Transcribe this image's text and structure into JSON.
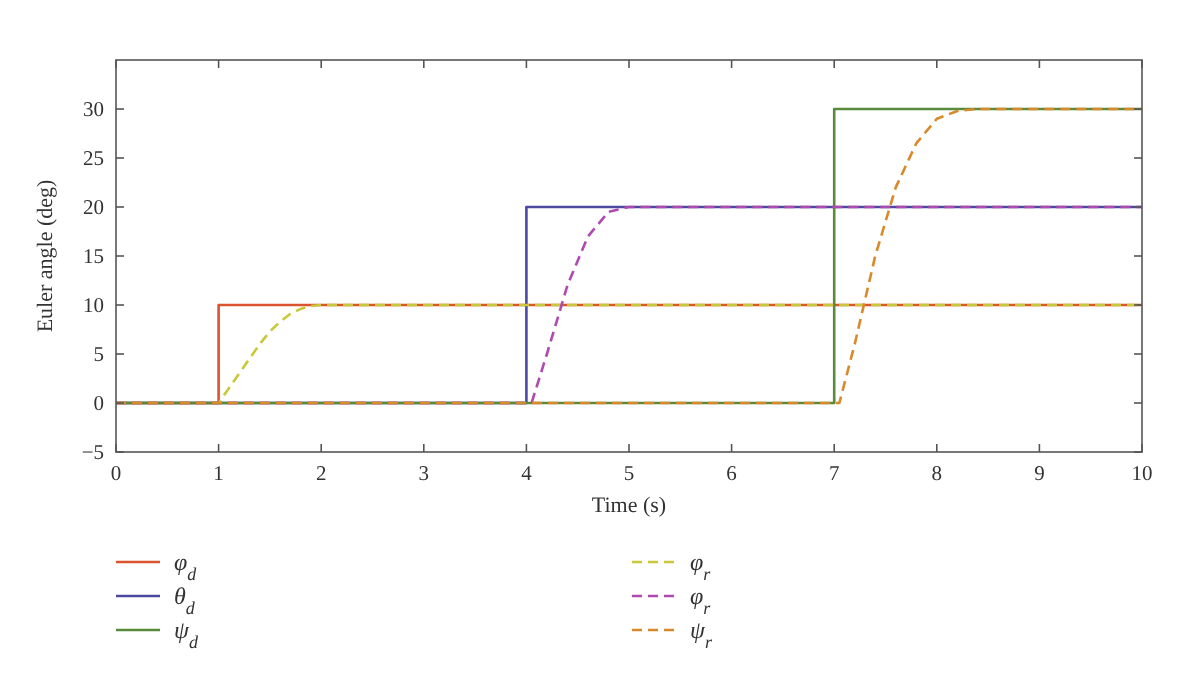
{
  "chart_data": {
    "type": "line",
    "xlabel": "Time (s)",
    "ylabel": "Euler angle (deg)",
    "xlim": [
      0,
      10
    ],
    "ylim": [
      -5,
      35
    ],
    "xticks": [
      0,
      1,
      2,
      3,
      4,
      5,
      6,
      7,
      8,
      9,
      10
    ],
    "yticks": [
      -5,
      0,
      5,
      10,
      15,
      20,
      25,
      30
    ],
    "grid": false,
    "legend": "bottom",
    "marker": "none",
    "series": [
      {
        "name": "φ$_{d}$",
        "color": "#d9542f",
        "line_style": "solid",
        "x": [
          0,
          1,
          1,
          10
        ],
        "values": [
          0,
          0,
          10,
          10
        ]
      },
      {
        "name": "θ$_{d}$",
        "color": "#4b4aa0",
        "line_style": "solid",
        "x": [
          0,
          4,
          4,
          10
        ],
        "values": [
          0,
          0,
          20,
          20
        ]
      },
      {
        "name": "ψ$_{d}$",
        "color": "#5a8a3c",
        "line_style": "solid",
        "x": [
          0,
          7,
          7,
          10
        ],
        "values": [
          0,
          0,
          30,
          30
        ]
      },
      {
        "name": "φ$_{r}$",
        "color": "#c8c83a",
        "line_style": "dashed",
        "x": [
          0,
          1,
          1.1,
          1.2,
          1.3,
          1.4,
          1.5,
          1.6,
          1.7,
          1.8,
          1.9,
          2,
          10
        ],
        "values": [
          0,
          0,
          1.5,
          3,
          4.5,
          6,
          7.3,
          8.3,
          9.1,
          9.6,
          9.9,
          10,
          10
        ]
      },
      {
        "name": "φ$_{r}$",
        "color": "#b04ab0",
        "line_style": "dashed",
        "x": [
          0,
          4.05,
          4.2,
          4.4,
          4.6,
          4.8,
          5,
          10
        ],
        "values": [
          0,
          0,
          5,
          12,
          17,
          19.5,
          20,
          20
        ]
      },
      {
        "name": "ψ$_{r}$",
        "color": "#d9892a",
        "line_style": "dashed",
        "x": [
          0,
          7.05,
          7.2,
          7.4,
          7.6,
          7.8,
          8,
          8.2,
          8.4,
          10
        ],
        "values": [
          0,
          0,
          6,
          15,
          22,
          26.5,
          29,
          29.8,
          30,
          30
        ]
      }
    ]
  }
}
